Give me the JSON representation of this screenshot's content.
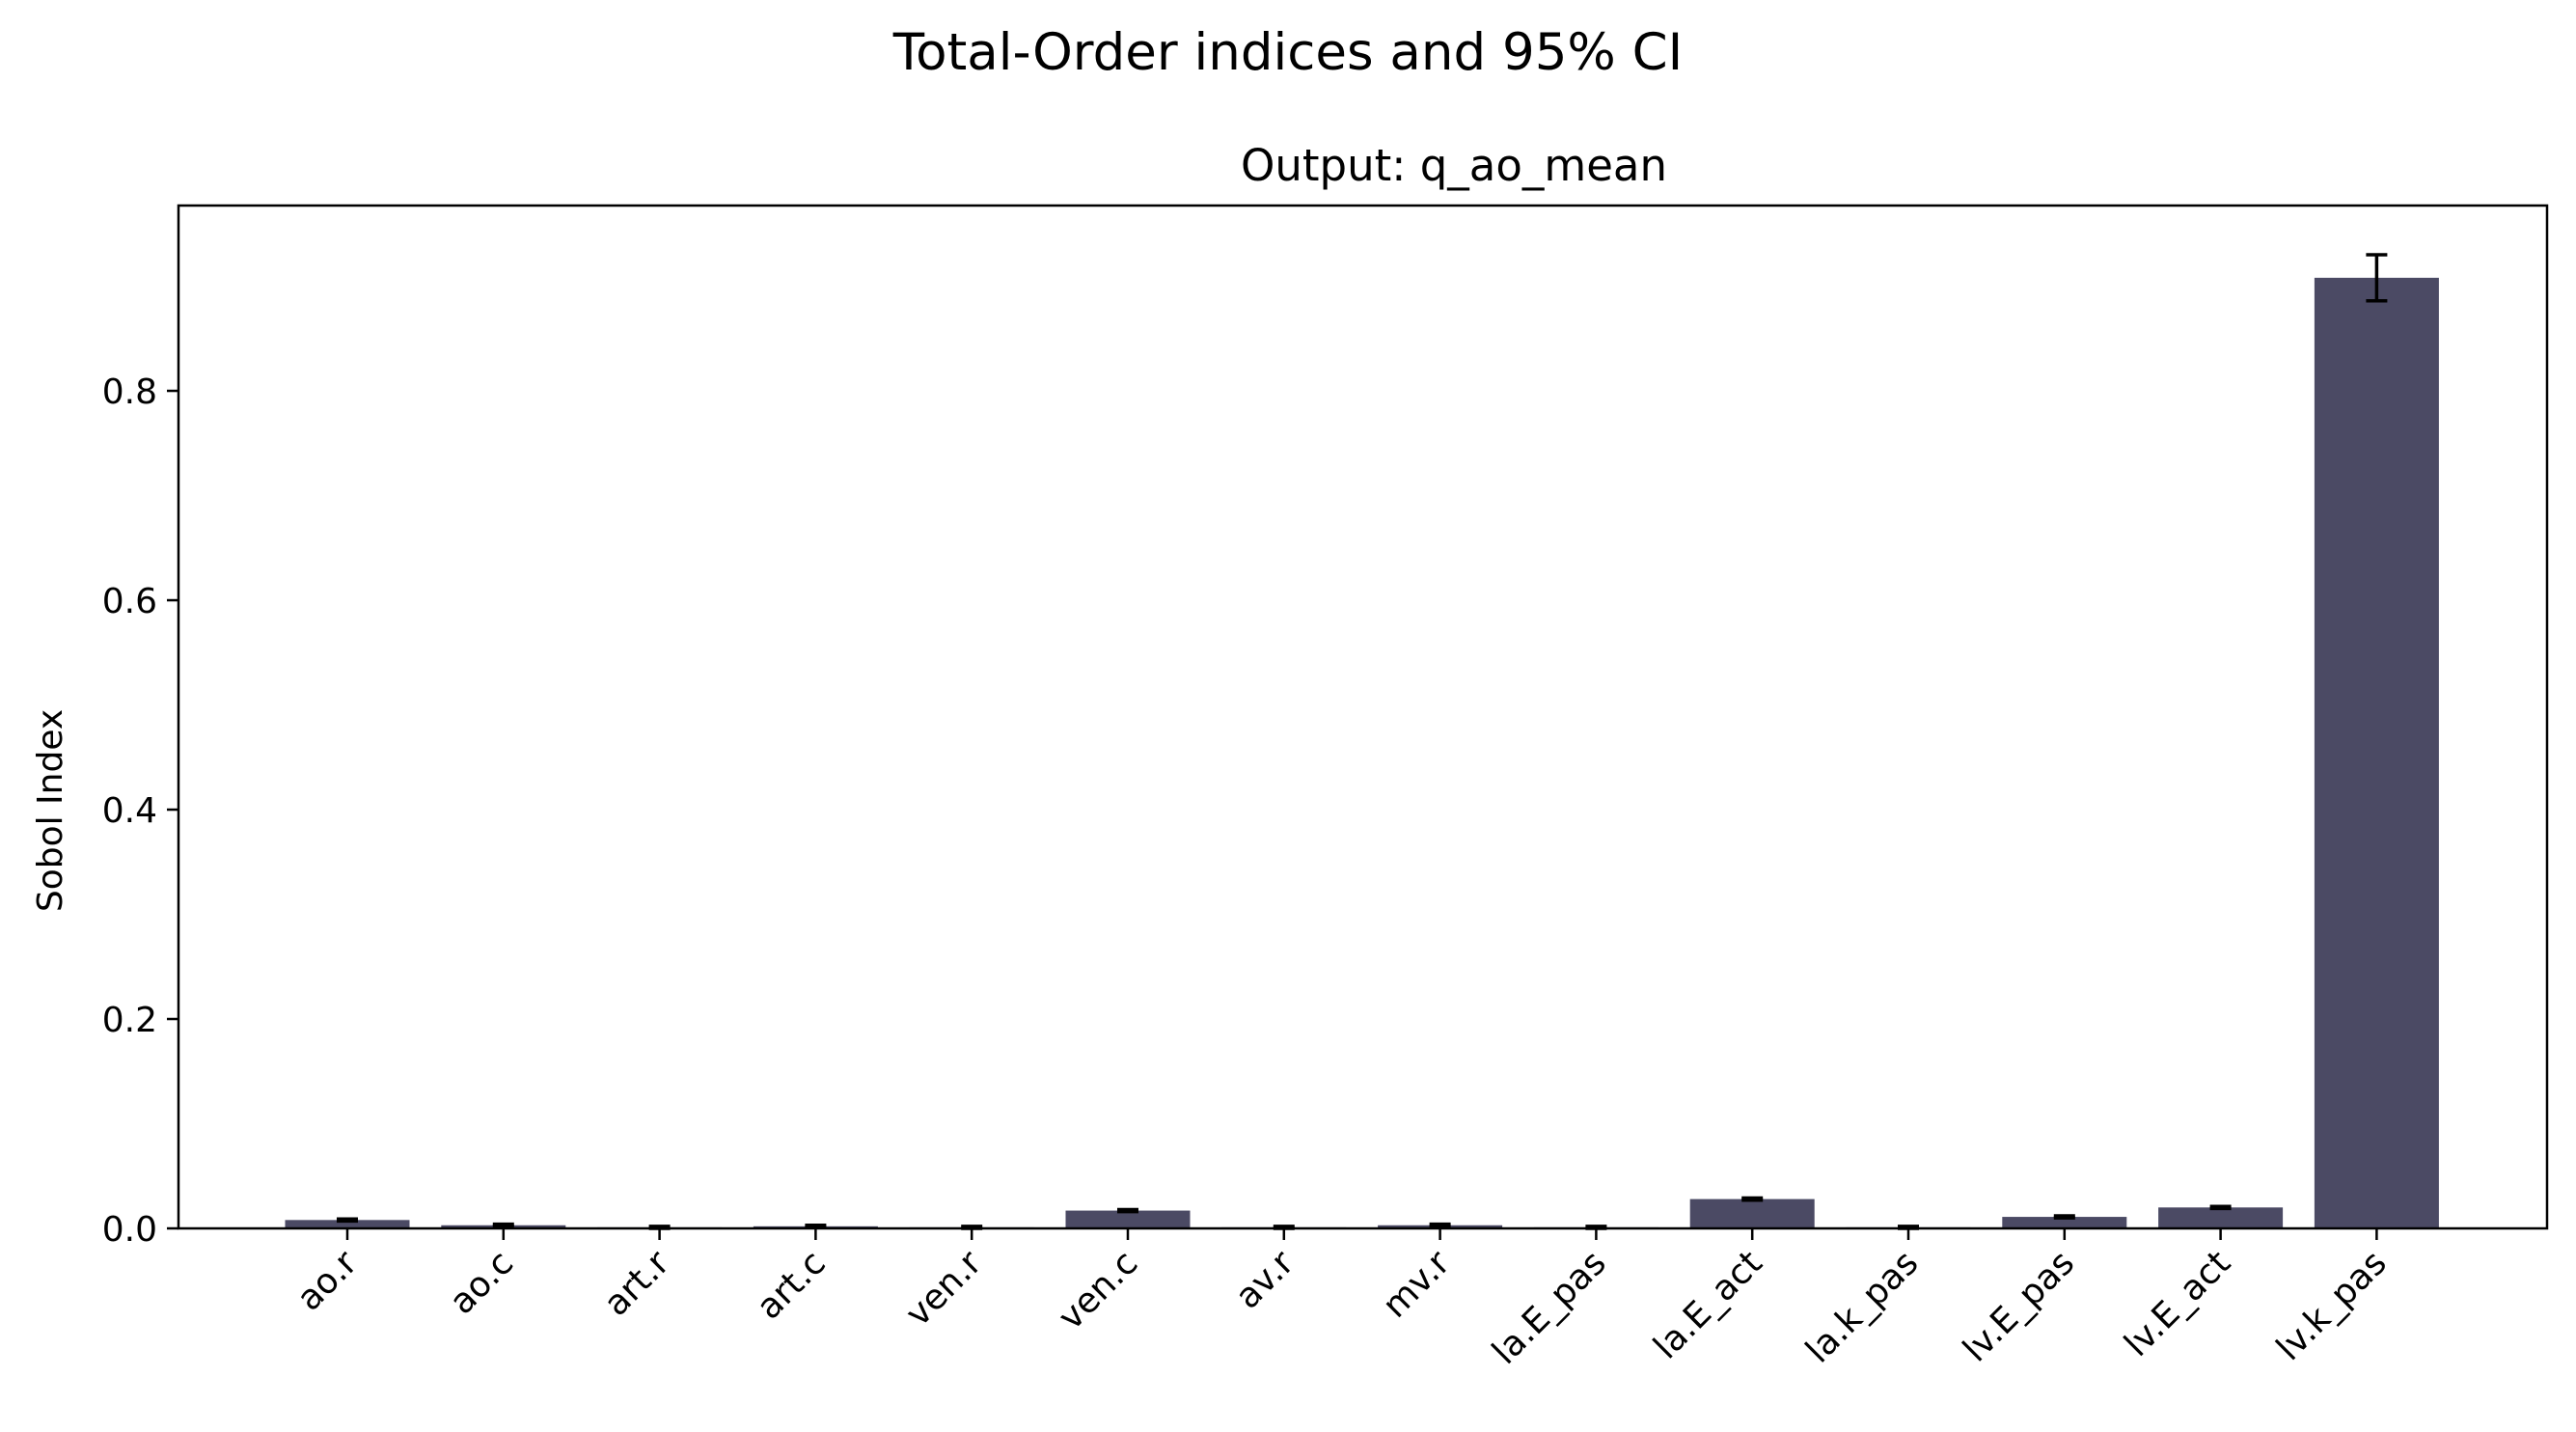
{
  "chart_data": {
    "type": "bar",
    "suptitle": "Total-Order indices and 95% CI",
    "title": "Output: q_ao_mean",
    "xlabel": "",
    "ylabel": "Sobol Index",
    "ylim": [
      0,
      0.977
    ],
    "yticks": [
      0.0,
      0.2,
      0.4,
      0.6,
      0.8
    ],
    "ytick_labels": [
      "0.0",
      "0.2",
      "0.4",
      "0.6",
      "0.8"
    ],
    "grid": false,
    "bar_color": "#4b4a64",
    "errorbar_color": "#000000",
    "categories": [
      "ao.r",
      "ao.c",
      "art.r",
      "art.c",
      "ven.r",
      "ven.c",
      "av.r",
      "mv.r",
      "la.E_pas",
      "la.E_act",
      "la.k_pas",
      "lv.E_pas",
      "lv.E_act",
      "lv.k_pas"
    ],
    "values": [
      0.008,
      0.003,
      0.001,
      0.002,
      0.001,
      0.017,
      0.001,
      0.003,
      0.001,
      0.028,
      0.001,
      0.011,
      0.02,
      0.908
    ],
    "ci": [
      0.001,
      0.001,
      0.001,
      0.001,
      0.001,
      0.001,
      0.001,
      0.001,
      0.001,
      0.001,
      0.001,
      0.001,
      0.001,
      0.022
    ]
  }
}
